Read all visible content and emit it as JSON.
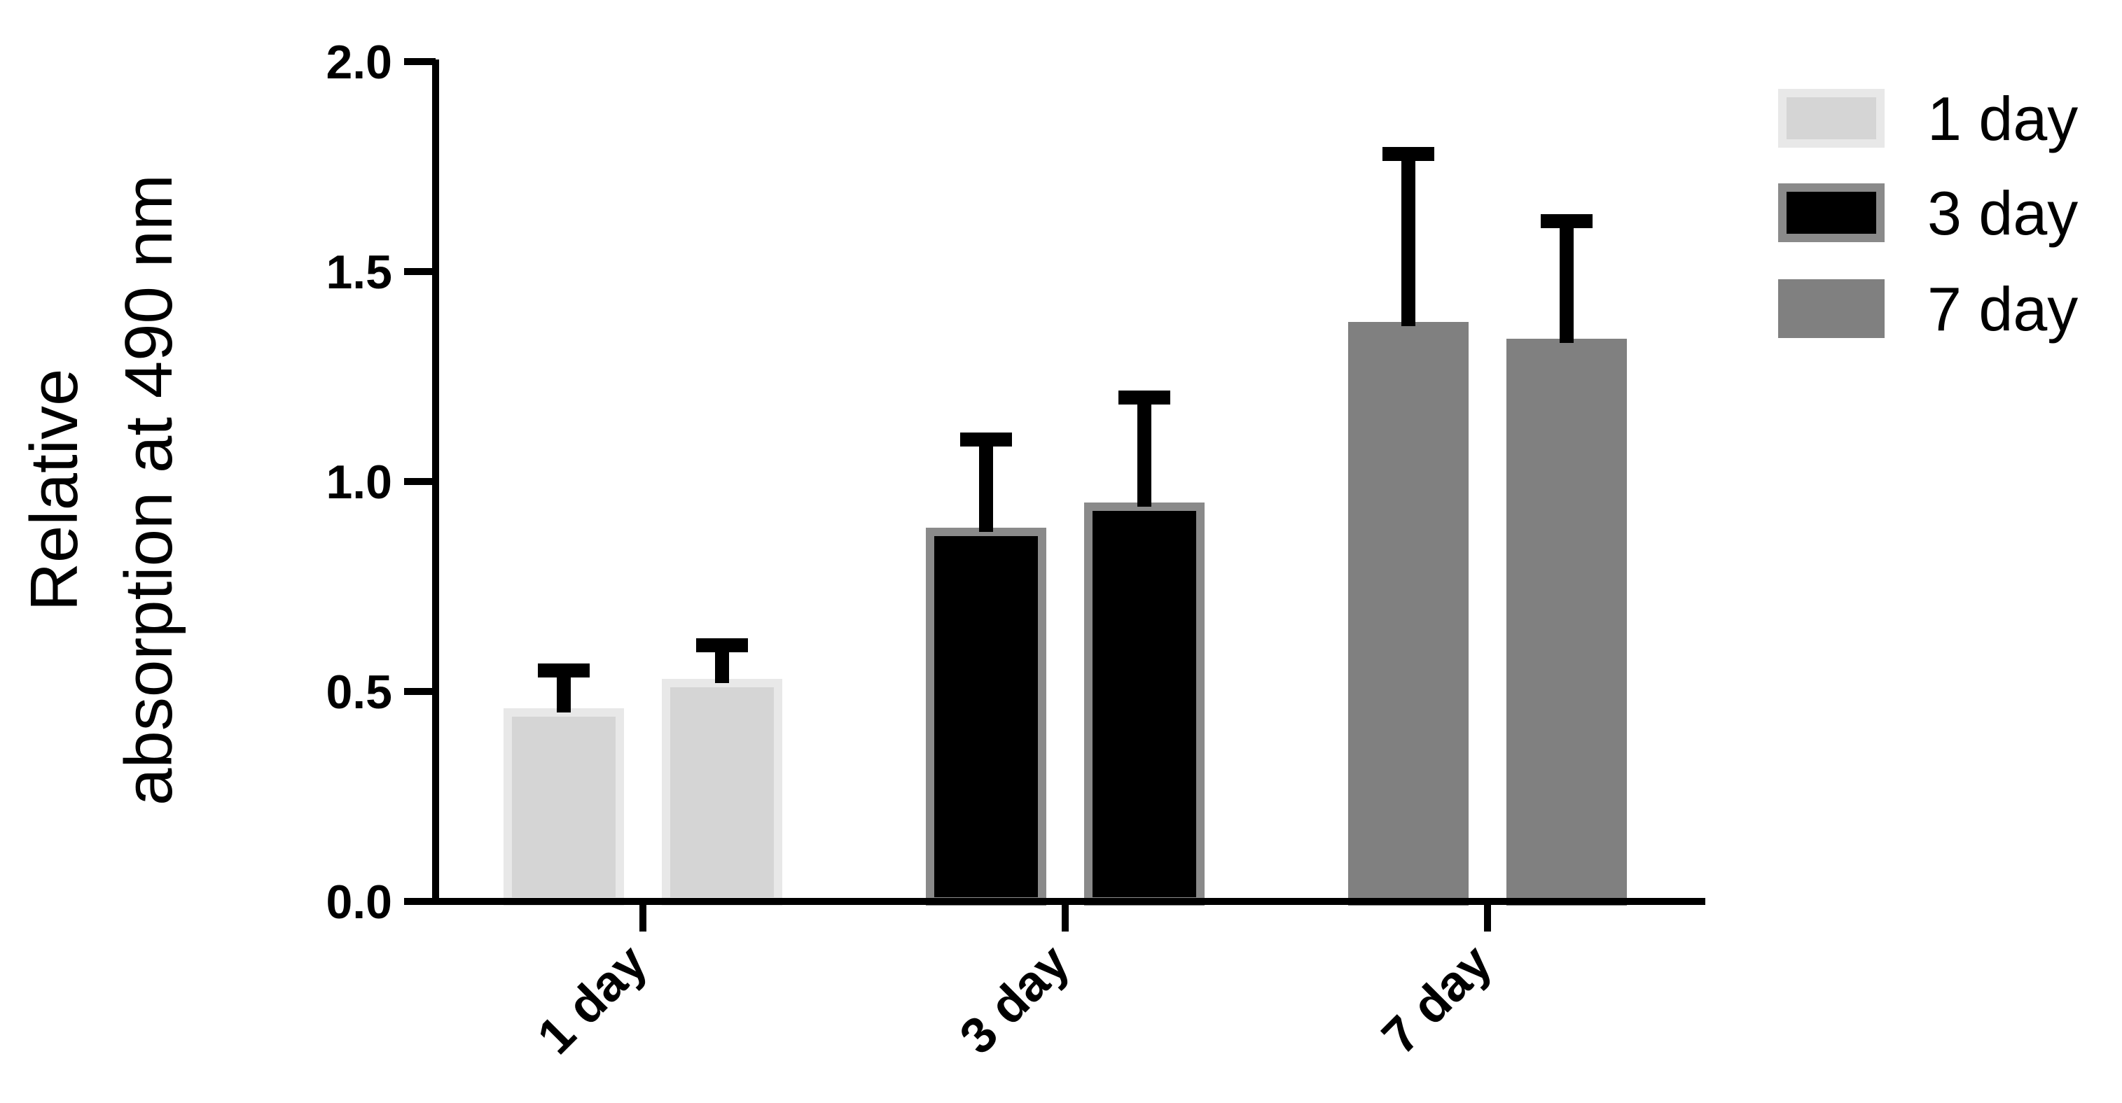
{
  "chart_data": {
    "type": "bar",
    "title": "",
    "xlabel": "",
    "ylabel_lines": [
      "Relative",
      "absorption at 490 nm"
    ],
    "ylim": [
      0,
      2.0
    ],
    "yticks": [
      "0.0",
      "0.5",
      "1.0",
      "1.5",
      "2.0"
    ],
    "ytick_values": [
      0,
      0.5,
      1.0,
      1.5,
      2.0
    ],
    "categories": [
      "1 day",
      "3 day",
      "7 day"
    ],
    "bars_per_category": 2,
    "values": [
      [
        0.45,
        0.52
      ],
      [
        0.88,
        0.94
      ],
      [
        1.37,
        1.33
      ]
    ],
    "errors": [
      [
        0.1,
        0.09
      ],
      [
        0.22,
        0.26
      ],
      [
        0.41,
        0.29
      ]
    ],
    "grid": false,
    "legend_placement": "top-right",
    "legend": [
      {
        "label": "1 day",
        "fill": "#d5d5d5",
        "stroke": "#e8e8e8"
      },
      {
        "label": "3 day",
        "fill": "#000000",
        "stroke": "#8a8a8a"
      },
      {
        "label": "7 day",
        "fill": "#808080",
        "stroke": "#808080"
      }
    ],
    "colors": {
      "axis": "#000000",
      "error_bar": "#000000"
    }
  }
}
